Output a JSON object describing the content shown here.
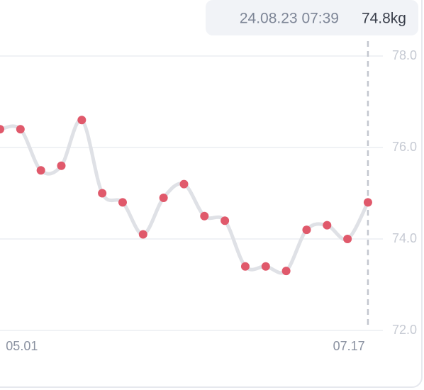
{
  "chart_data": {
    "type": "line",
    "categories": [
      null,
      "05.01",
      null,
      null,
      null,
      null,
      null,
      null,
      null,
      null,
      null,
      null,
      null,
      null,
      null,
      null,
      null,
      "07.17",
      null
    ],
    "series": [
      {
        "color": "#e0596b",
        "values": [
          76.4,
          76.4,
          75.5,
          75.6,
          76.6,
          75.0,
          74.8,
          74.1,
          74.9,
          75.2,
          74.5,
          74.4,
          73.4,
          73.4,
          73.3,
          74.2,
          74.3,
          74.0,
          74.8
        ]
      }
    ],
    "ylim": [
      72.0,
      78.0
    ],
    "yticks": [
      {
        "value": 72,
        "label": "72.0"
      },
      {
        "value": 74,
        "label": "74.0"
      },
      {
        "value": 76,
        "label": "76.0"
      },
      {
        "value": 78,
        "label": "78.0"
      }
    ],
    "grid": true,
    "tooltip": {
      "date": "24.08.23 07:39",
      "value": "74.8kg"
    }
  }
}
